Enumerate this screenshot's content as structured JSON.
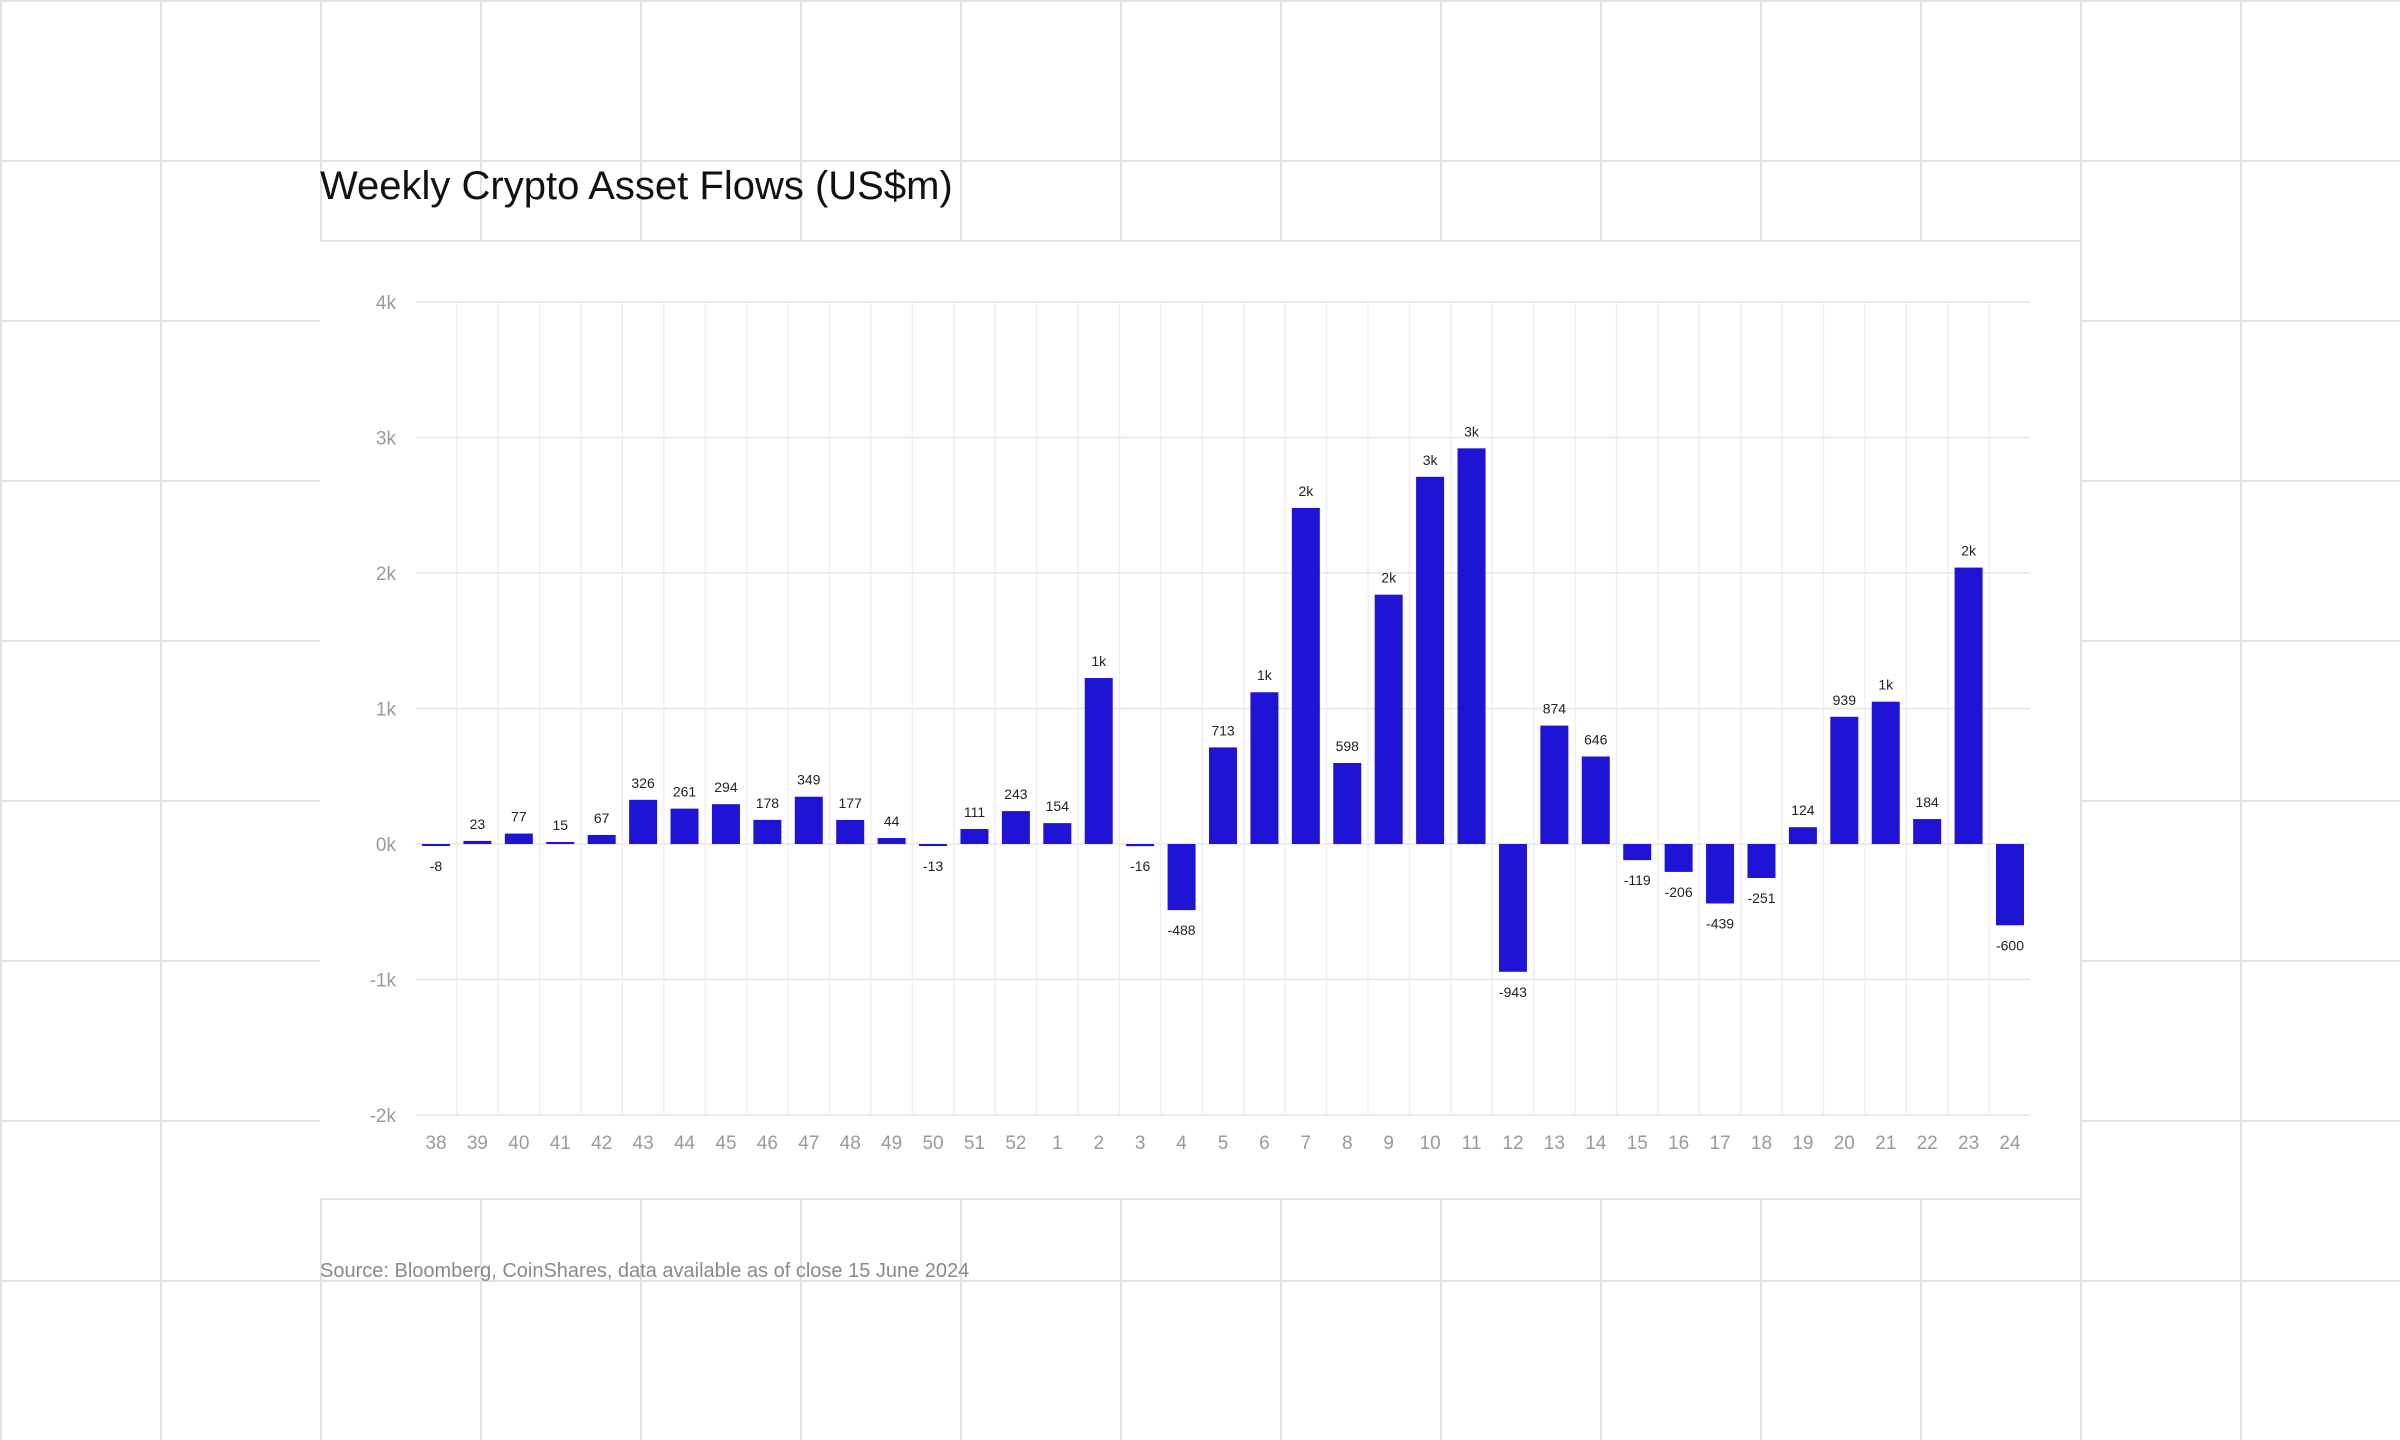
{
  "chart_data": {
    "type": "bar",
    "title": "Weekly Crypto Asset Flows (US$m)",
    "source": "Source: Bloomberg, CoinShares, data available as of close 15 June 2024",
    "xlabel": "",
    "ylabel": "",
    "ylim": [
      -2000,
      4000
    ],
    "yticks": [
      -2000,
      -1000,
      0,
      1000,
      2000,
      3000,
      4000
    ],
    "ytick_labels": [
      "-2k",
      "-1k",
      "0k",
      "1k",
      "2k",
      "3k",
      "4k"
    ],
    "grid": true,
    "bar_color": "#1f14d6",
    "categories": [
      "38",
      "39",
      "40",
      "41",
      "42",
      "43",
      "44",
      "45",
      "46",
      "47",
      "48",
      "49",
      "50",
      "51",
      "52",
      "1",
      "2",
      "3",
      "4",
      "5",
      "6",
      "7",
      "8",
      "9",
      "10",
      "11",
      "12",
      "13",
      "14",
      "15",
      "16",
      "17",
      "18",
      "19",
      "20",
      "21",
      "22",
      "23",
      "24"
    ],
    "values": [
      -8,
      23,
      77,
      15,
      67,
      326,
      261,
      294,
      178,
      349,
      177,
      44,
      -13,
      111,
      243,
      154,
      1225,
      -16,
      -488,
      713,
      1120,
      2480,
      598,
      1840,
      2710,
      2920,
      -943,
      874,
      646,
      -119,
      -206,
      -439,
      -251,
      124,
      939,
      1050,
      184,
      2040,
      -600
    ],
    "data_labels": [
      "-8",
      "23",
      "77",
      "15",
      "67",
      "326",
      "261",
      "294",
      "178",
      "349",
      "177",
      "44",
      "-13",
      "111",
      "243",
      "154",
      "1k",
      "-16",
      "-488",
      "713",
      "1k",
      "2k",
      "598",
      "2k",
      "3k",
      "3k",
      "-943",
      "874",
      "646",
      "-119",
      "-206",
      "-439",
      "-251",
      "124",
      "939",
      "1k",
      "184",
      "2k",
      "-600"
    ]
  }
}
